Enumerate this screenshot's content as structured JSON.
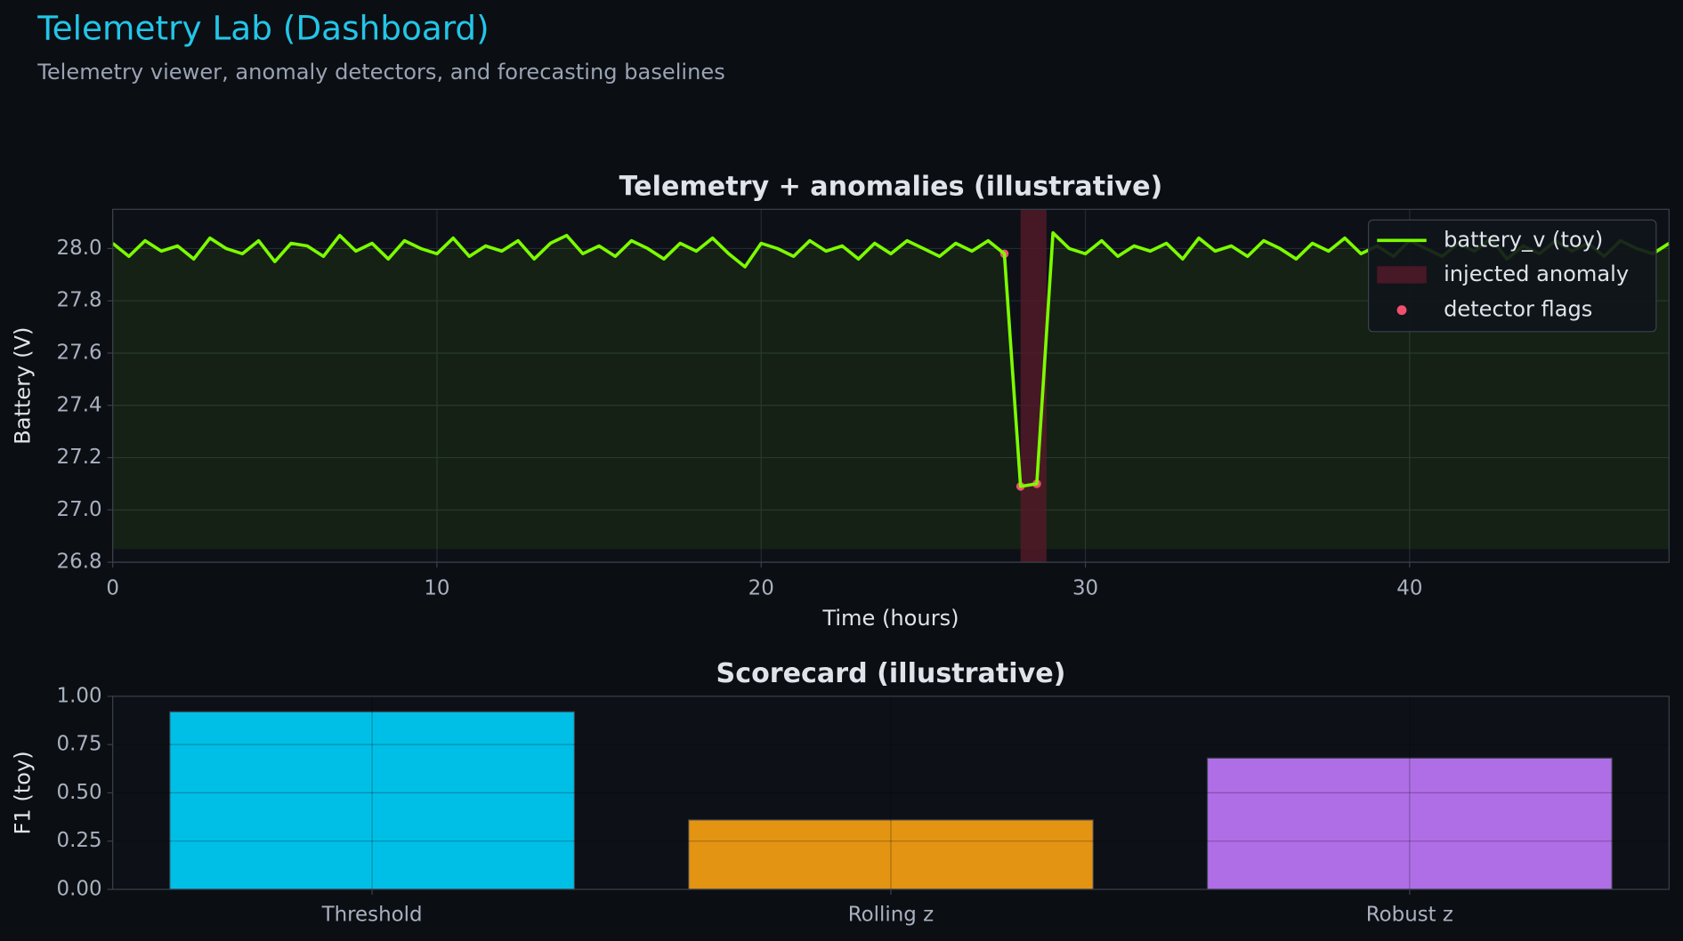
{
  "header": {
    "title": "Telemetry Lab (Dashboard)",
    "subtitle": "Telemetry viewer, anomaly detectors, and forecasting baselines"
  },
  "chart_data": [
    {
      "type": "line",
      "title": "Telemetry + anomalies (illustrative)",
      "xlabel": "Time (hours)",
      "ylabel": "Battery (V)",
      "x": [
        0,
        0.5,
        1,
        1.5,
        2,
        2.5,
        3,
        3.5,
        4,
        4.5,
        5,
        5.5,
        6,
        6.5,
        7,
        7.5,
        8,
        8.5,
        9,
        9.5,
        10,
        10.5,
        11,
        11.5,
        12,
        12.5,
        13,
        13.5,
        14,
        14.5,
        15,
        15.5,
        16,
        16.5,
        17,
        17.5,
        18,
        18.5,
        19,
        19.5,
        20,
        20.5,
        21,
        21.5,
        22,
        22.5,
        23,
        23.5,
        24,
        24.5,
        25,
        25.5,
        26,
        26.5,
        27,
        27.5,
        28,
        28.5,
        29,
        29.5,
        30,
        30.5,
        31,
        31.5,
        32,
        32.5,
        33,
        33.5,
        34,
        34.5,
        35,
        35.5,
        36,
        36.5,
        37,
        37.5,
        38,
        38.5,
        39,
        39.5,
        40,
        40.5,
        41,
        41.5,
        42,
        42.5,
        43,
        43.5,
        44,
        44.5,
        45,
        45.5,
        46,
        46.5,
        47,
        47.5,
        48
      ],
      "series": [
        {
          "name": "battery_v (toy)",
          "color": "#7cfc00",
          "values": [
            28.02,
            27.97,
            28.03,
            27.99,
            28.01,
            27.96,
            28.04,
            28.0,
            27.98,
            28.03,
            27.95,
            28.02,
            28.01,
            27.97,
            28.05,
            27.99,
            28.02,
            27.96,
            28.03,
            28.0,
            27.98,
            28.04,
            27.97,
            28.01,
            27.99,
            28.03,
            27.96,
            28.02,
            28.05,
            27.98,
            28.01,
            27.97,
            28.03,
            28.0,
            27.96,
            28.02,
            27.99,
            28.04,
            27.98,
            27.93,
            28.02,
            28.0,
            27.97,
            28.03,
            27.99,
            28.01,
            27.96,
            28.02,
            27.98,
            28.03,
            28.0,
            27.97,
            28.02,
            27.99,
            28.03,
            27.98,
            27.09,
            27.1,
            28.06,
            28.0,
            27.98,
            28.03,
            27.97,
            28.01,
            27.99,
            28.02,
            27.96,
            28.04,
            27.99,
            28.01,
            27.97,
            28.03,
            28.0,
            27.96,
            28.02,
            27.99,
            28.04,
            27.98,
            28.01,
            27.97,
            28.03,
            28.0,
            27.97,
            28.02,
            27.99,
            28.04,
            27.96,
            28.01,
            27.98,
            28.03,
            27.99,
            28.02,
            27.97,
            28.03,
            28.0,
            27.98,
            28.02
          ]
        }
      ],
      "fill_to": 26.85,
      "anomaly": {
        "name": "injected anomaly",
        "color": "#5a1a2a",
        "x": [
          28.0,
          28.8
        ]
      },
      "flags": {
        "name": "detector flags",
        "color": "#f0506e",
        "x": [
          27.5,
          28.0,
          28.5
        ],
        "y": [
          27.98,
          27.09,
          27.1
        ]
      },
      "xlim": [
        0,
        48
      ],
      "ylim": [
        26.8,
        28.15
      ],
      "xticks": [
        0,
        10,
        20,
        30,
        40
      ],
      "yticks": [
        26.8,
        {
          "value": 27,
          "label": "27.0"
        },
        27.2,
        27.4,
        27.6,
        27.8,
        {
          "value": 28,
          "label": "28.0"
        }
      ],
      "grid": true,
      "legend": "upper right"
    },
    {
      "type": "bar",
      "title": "Scorecard (illustrative)",
      "ylabel": "F1 (toy)",
      "categories": [
        "Threshold",
        "Rolling z",
        "Robust z"
      ],
      "values": [
        0.92,
        0.36,
        0.68
      ],
      "colors": [
        "#00bfe6",
        "#e39412",
        "#b06ee6"
      ],
      "ylim": [
        0,
        1
      ],
      "yticks": [
        {
          "value": 0,
          "label": "0.00"
        },
        {
          "value": 0.25,
          "label": "0.25"
        },
        {
          "value": 0.5,
          "label": "0.50"
        },
        {
          "value": 0.75,
          "label": "0.75"
        },
        {
          "value": 1,
          "label": "1.00"
        }
      ],
      "grid": true
    }
  ]
}
